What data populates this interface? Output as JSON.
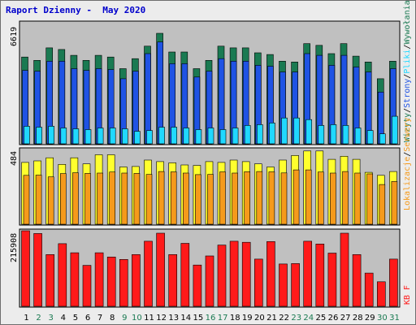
{
  "title": "Raport Dzienny -  May 2020",
  "colors": {
    "panel_bg": "#c0c0c0",
    "wizyty": "#1a7a52",
    "strony": "#1f53e4",
    "pliki": "#20d8ff",
    "lokalizacje": "#ffff2e",
    "serwery": "#f59a1b",
    "kbf": "#ff1a1a",
    "weekday_label": "#000000",
    "weekend_label": "#1a7a52"
  },
  "chart_data": [
    {
      "type": "bar",
      "panel": "top",
      "ymax_label": "6619",
      "ylim": [
        0,
        6619
      ],
      "x": [
        1,
        2,
        3,
        4,
        5,
        6,
        7,
        8,
        9,
        10,
        11,
        12,
        13,
        14,
        15,
        16,
        17,
        18,
        19,
        20,
        21,
        22,
        23,
        24,
        25,
        26,
        27,
        28,
        29,
        30,
        31
      ],
      "weekend_days": [
        2,
        3,
        9,
        10,
        16,
        17,
        23,
        24,
        30,
        31
      ],
      "legend": [
        {
          "label": "Wizyty",
          "color": "#1a7a52"
        },
        {
          "label": "/",
          "color": "#000000"
        },
        {
          "label": "Strony",
          "color": "#1f53e4"
        },
        {
          "label": "/",
          "color": "#000000"
        },
        {
          "label": "Pliki",
          "color": "#20d8ff"
        },
        {
          "label": "/",
          "color": "#000000"
        },
        {
          "label": "Wywołania",
          "color": "#1a7a52"
        }
      ],
      "series": [
        {
          "name": "Wywołania",
          "values": [
            5200,
            5000,
            5750,
            5650,
            5300,
            5000,
            5300,
            5200,
            4500,
            5100,
            5850,
            6619,
            5500,
            5500,
            4500,
            5000,
            5850,
            5750,
            5750,
            5450,
            5350,
            4950,
            4900,
            6000,
            5900,
            5400,
            6000,
            5250,
            4900,
            3900,
            4950
          ]
        },
        {
          "name": "Strony",
          "values": [
            4400,
            4350,
            4950,
            4950,
            4500,
            4400,
            4500,
            4450,
            3900,
            4350,
            5400,
            6100,
            4800,
            4800,
            4000,
            4350,
            5100,
            4950,
            4950,
            4700,
            4650,
            4300,
            4300,
            5400,
            5300,
            4700,
            5300,
            4600,
            4300,
            3100,
            4500
          ]
        },
        {
          "name": "Pliki",
          "values": [
            1050,
            1000,
            1050,
            950,
            900,
            850,
            950,
            950,
            900,
            750,
            800,
            1000,
            1000,
            950,
            850,
            950,
            850,
            950,
            1100,
            1150,
            1250,
            1550,
            1550,
            1450,
            1100,
            1150,
            1100,
            950,
            800,
            600,
            1650
          ]
        }
      ]
    },
    {
      "type": "bar",
      "panel": "middle",
      "ymax_label": "484",
      "ylim": [
        0,
        484
      ],
      "x": [
        1,
        2,
        3,
        4,
        5,
        6,
        7,
        8,
        9,
        10,
        11,
        12,
        13,
        14,
        15,
        16,
        17,
        18,
        19,
        20,
        21,
        22,
        23,
        24,
        25,
        26,
        27,
        28,
        29,
        30,
        31
      ],
      "legend": [
        {
          "label": "Lokalizacje",
          "color": "#f59a1b"
        },
        {
          "label": "/",
          "color": "#000000"
        },
        {
          "label": "Serwery",
          "color": "#f59a1b"
        }
      ],
      "series": [
        {
          "name": "Lokalizacje",
          "values": [
            405,
            415,
            435,
            392,
            435,
            395,
            455,
            455,
            375,
            378,
            420,
            410,
            402,
            388,
            385,
            410,
            405,
            420,
            410,
            395,
            375,
            420,
            450,
            480,
            480,
            425,
            445,
            425,
            340,
            320,
            345
          ]
        },
        {
          "name": "Serwery",
          "values": [
            320,
            322,
            310,
            332,
            337,
            333,
            335,
            342,
            335,
            333,
            326,
            345,
            343,
            335,
            325,
            326,
            343,
            335,
            344,
            345,
            343,
            336,
            356,
            356,
            342,
            335,
            345,
            335,
            330,
            260,
            280
          ]
        }
      ]
    },
    {
      "type": "bar",
      "panel": "bottom",
      "ymax_label": "215908",
      "ylim": [
        0,
        215908
      ],
      "x": [
        1,
        2,
        3,
        4,
        5,
        6,
        7,
        8,
        9,
        10,
        11,
        12,
        13,
        14,
        15,
        16,
        17,
        18,
        19,
        20,
        21,
        22,
        23,
        24,
        25,
        26,
        27,
        28,
        29,
        30,
        31
      ],
      "legend": [
        {
          "label": "KB F",
          "color": "#ff1a1a"
        }
      ],
      "series": [
        {
          "name": "KB F",
          "values": [
            215908,
            208000,
            148000,
            179000,
            153000,
            117000,
            153000,
            141000,
            134000,
            148000,
            186000,
            209000,
            148000,
            180000,
            118000,
            144000,
            175000,
            186000,
            183000,
            135000,
            185000,
            121000,
            122000,
            186000,
            178000,
            152000,
            209000,
            148000,
            95000,
            70000,
            135000
          ]
        }
      ]
    }
  ]
}
